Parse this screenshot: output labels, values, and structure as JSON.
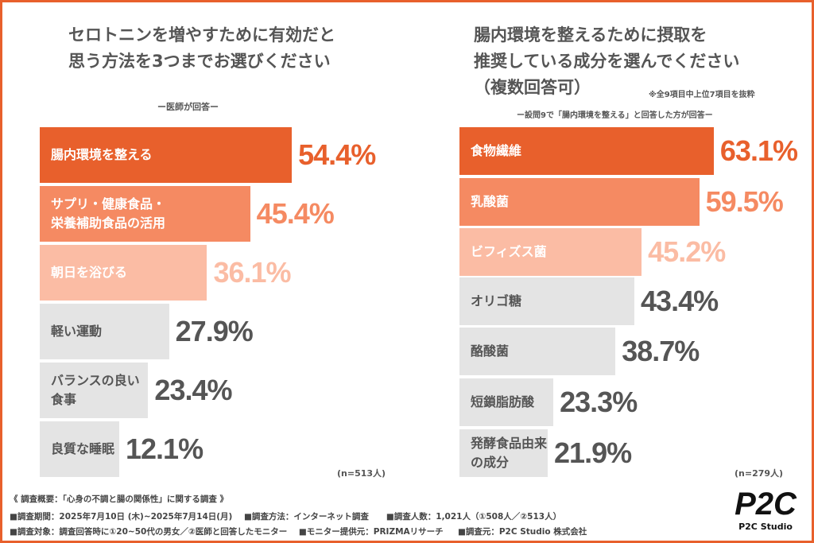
{
  "chart_data": [
    {
      "type": "bar",
      "orientation": "horizontal",
      "title": "セロトニンを増やすために有効だと思う方法を3つまでお選びください",
      "title_lines": [
        "セロトニンを増やすために有効だと",
        "思う方法を3つまでお選びください"
      ],
      "subtitle": "ー医師が回答ー",
      "categories": [
        [
          "腸内環境を整える"
        ],
        [
          "サプリ・健康食品・",
          "栄養補助食品の活用"
        ],
        [
          "朝日を浴びる"
        ],
        [
          "軽い運動"
        ],
        [
          "バランスの良い食事"
        ],
        [
          "良質な睡眠"
        ]
      ],
      "values": [
        54.4,
        45.4,
        36.1,
        27.9,
        23.4,
        12.1
      ],
      "value_labels": [
        "54.4%",
        "45.4%",
        "36.1%",
        "27.9%",
        "23.4%",
        "12.1%"
      ],
      "unit": "%",
      "n": "(n=513人)"
    },
    {
      "type": "bar",
      "orientation": "horizontal",
      "title": "腸内環境を整えるために摂取を推奨している成分を選んでください（複数回答可）",
      "title_lines": [
        "腸内環境を整えるために摂取を",
        "推奨している成分を選んでください",
        "（複数回答可）"
      ],
      "note": "※全9項目中上位7項目を抜粋",
      "subtitle": "ー設問9で「腸内環境を整える」と回答した方が回答ー",
      "categories": [
        [
          "食物繊維"
        ],
        [
          "乳酸菌"
        ],
        [
          "ビフィズス菌"
        ],
        [
          "オリゴ糖"
        ],
        [
          "酪酸菌"
        ],
        [
          "短鎖脂肪酸"
        ],
        [
          "発酵食品由来の成分"
        ]
      ],
      "values": [
        63.1,
        59.5,
        45.2,
        43.4,
        38.7,
        23.3,
        21.9
      ],
      "value_labels": [
        "63.1%",
        "59.5%",
        "45.2%",
        "43.4%",
        "38.7%",
        "23.3%",
        "21.9%"
      ],
      "unit": "%",
      "n": "(n=279人)"
    }
  ],
  "colors": {
    "rank1": "#e8602c",
    "rank2": "#f58a62",
    "rank3": "#fbbca4",
    "other": "#e4e4e4",
    "other_text": "#555555",
    "frame": "#e8602c"
  },
  "footer": {
    "line1": "《 調査概要：「心身の不調と腸の関係性」に関する調査 》",
    "line2": [
      "■調査期間：2025年7月10日 (木)~2025年7月14日(月)",
      "■調査方法：インターネット調査",
      "■調査人数：1,021人（①508人／②513人）"
    ],
    "line3": [
      "■調査対象：調査回答時に①20~50代の男女／②医師と回答したモニター",
      "■モニター提供元：PRIZMAリサーチ",
      "■調査元：P2C Studio 株式会社"
    ]
  },
  "logo": {
    "mark": "P2C",
    "text": "P2C Studio"
  }
}
